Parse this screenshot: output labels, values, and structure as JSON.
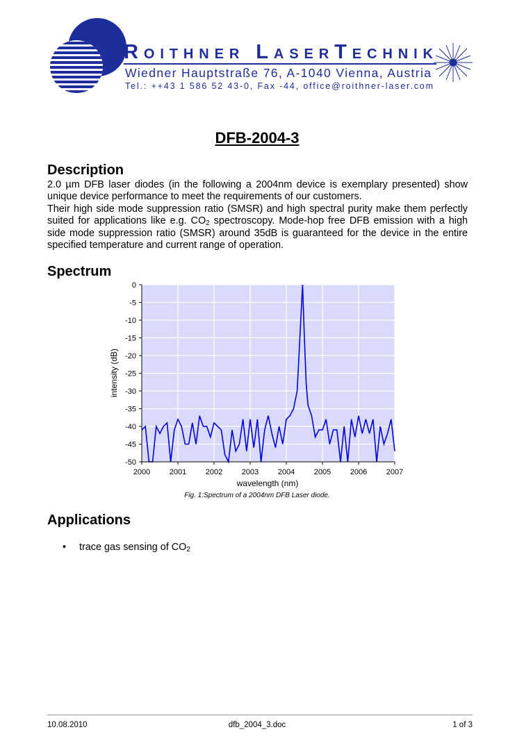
{
  "header": {
    "company": "Roithner LaserTechnik",
    "address": "Wiedner Hauptstraße 76, A-1040 Vienna, Austria",
    "contact": "Tel.: ++43 1 586 52 43-0, Fax -44, office@roithner-laser.com"
  },
  "title": "DFB-2004-3",
  "description": {
    "heading": "Description",
    "paragraphs": [
      "2.0 µm DFB laser diodes (in the following a 2004nm device is exemplary presented) show unique device performance to meet the requirements of our customers.",
      [
        "Their high side mode suppression ratio (SMSR) and high spectral purity make them perfectly suited for applications like e.g. CO",
        "2",
        " spectroscopy. Mode-hop free DFB emission with a high side mode suppression ratio (SMSR) around 35dB is guaranteed for the device in the entire specified temperature and current range of operation."
      ]
    ]
  },
  "spectrum": {
    "heading": "Spectrum",
    "caption": "Fig. 1:Spectrum of a 2004nm DFB Laser diode."
  },
  "chart_data": {
    "type": "line",
    "color": "#0000dd",
    "grid": true,
    "xlabel": "wavelength (nm)",
    "ylabel": "intensity (dB)",
    "xlim": [
      2000,
      2007
    ],
    "ylim": [
      -50,
      0
    ],
    "xticks": [
      2000,
      2001,
      2002,
      2003,
      2004,
      2005,
      2006,
      2007
    ],
    "yticks": [
      0,
      -5,
      -10,
      -15,
      -20,
      -25,
      -30,
      -35,
      -40,
      -45,
      -50
    ],
    "x": [
      2000.0,
      2000.1,
      2000.2,
      2000.3,
      2000.4,
      2000.5,
      2000.6,
      2000.7,
      2000.8,
      2000.9,
      2001.0,
      2001.1,
      2001.2,
      2001.3,
      2001.4,
      2001.5,
      2001.6,
      2001.7,
      2001.8,
      2001.9,
      2002.0,
      2002.1,
      2002.2,
      2002.3,
      2002.4,
      2002.5,
      2002.6,
      2002.7,
      2002.8,
      2002.9,
      2003.0,
      2003.1,
      2003.2,
      2003.3,
      2003.4,
      2003.5,
      2003.6,
      2003.7,
      2003.8,
      2003.9,
      2004.0,
      2004.1,
      2004.2,
      2004.3,
      2004.35,
      2004.4,
      2004.45,
      2004.5,
      2004.55,
      2004.6,
      2004.7,
      2004.8,
      2004.9,
      2005.0,
      2005.1,
      2005.2,
      2005.3,
      2005.4,
      2005.5,
      2005.6,
      2005.7,
      2005.8,
      2005.9,
      2006.0,
      2006.1,
      2006.2,
      2006.3,
      2006.4,
      2006.5,
      2006.6,
      2006.7,
      2006.8,
      2006.9,
      2007.0
    ],
    "values": [
      -41,
      -40,
      -50,
      -50,
      -40,
      -42,
      -40,
      -39,
      -50,
      -41,
      -38,
      -40,
      -45,
      -45,
      -39,
      -45,
      -37,
      -40,
      -40,
      -43,
      -39,
      -40,
      -41,
      -48,
      -50,
      -41,
      -47,
      -45,
      -38,
      -47,
      -38,
      -46,
      -38,
      -50,
      -41,
      -37,
      -42,
      -46,
      -40,
      -45,
      -38,
      -37,
      -35,
      -30,
      -20,
      -10,
      0,
      -15,
      -28,
      -34,
      -37,
      -43,
      -41,
      -41,
      -38,
      -45,
      -41,
      -41,
      -50,
      -40,
      -50,
      -38,
      -43,
      -37,
      -42,
      -38,
      -42,
      -38,
      -50,
      -40,
      -45,
      -42,
      -38,
      -47
    ]
  },
  "applications": {
    "heading": "Applications",
    "items": [
      [
        "trace gas sensing of CO",
        "2"
      ]
    ]
  },
  "footer": {
    "date": "10.08.2010",
    "file": "dfb_2004_3.doc",
    "page": "1 of 3"
  }
}
